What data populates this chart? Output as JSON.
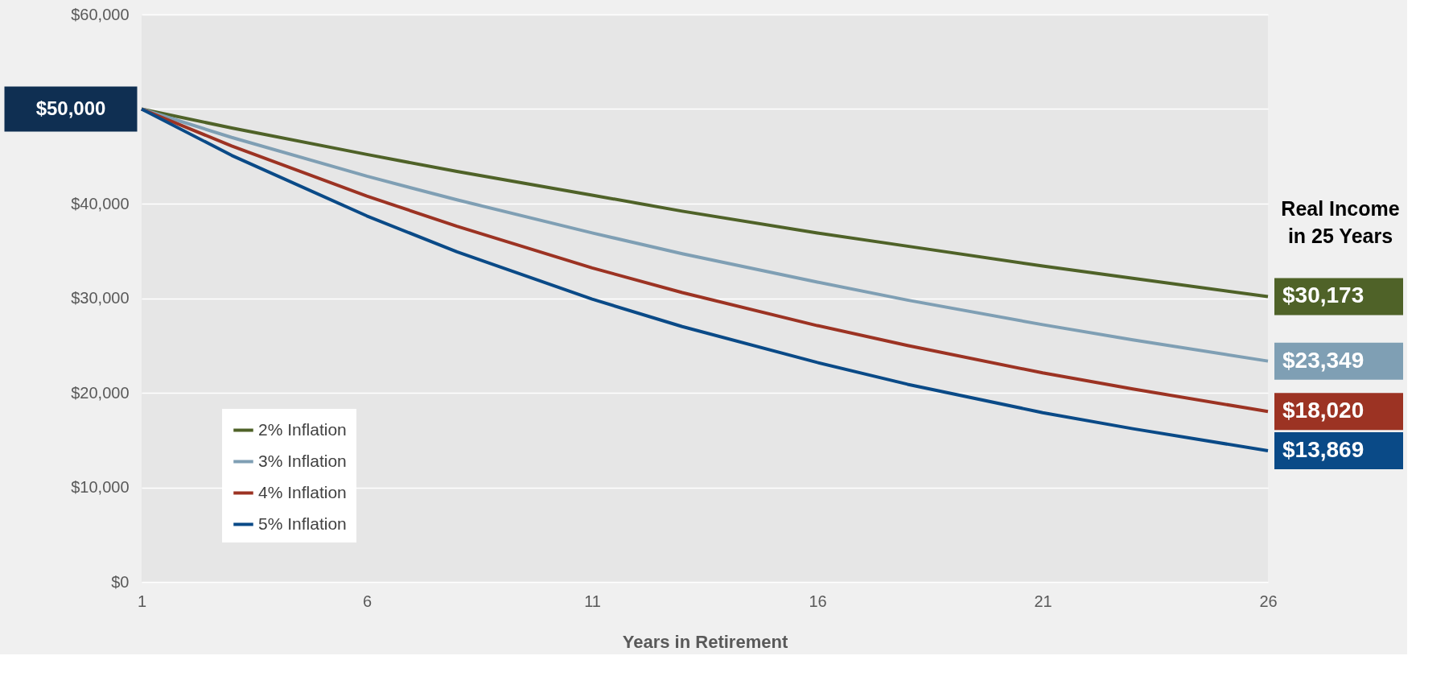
{
  "chart_data": {
    "type": "line",
    "xlabel": "Years in Retirement",
    "x": [
      1,
      3,
      6,
      8,
      11,
      13,
      16,
      18,
      21,
      23,
      26
    ],
    "series": [
      {
        "name": "2% Inflation",
        "color": "#4f6228",
        "values": [
          50000,
          48000,
          45200,
          43400,
          40900,
          39200,
          36900,
          35500,
          33400,
          32100,
          30173
        ],
        "value_labels": [
          null,
          null,
          null,
          null,
          null,
          null,
          null,
          null,
          null,
          null,
          "$30,173"
        ]
      },
      {
        "name": "3% Inflation",
        "color": "#7f9fb4",
        "values": [
          50000,
          47000,
          42900,
          40400,
          36900,
          34700,
          31700,
          29800,
          27200,
          25600,
          23349
        ],
        "value_labels": [
          null,
          null,
          null,
          null,
          null,
          null,
          null,
          null,
          null,
          null,
          "$23,349"
        ]
      },
      {
        "name": "4% Inflation",
        "color": "#9c3323",
        "values": [
          50000,
          46100,
          40800,
          37600,
          33200,
          30600,
          27100,
          25000,
          22100,
          20400,
          18020
        ],
        "value_labels": [
          null,
          null,
          null,
          null,
          null,
          null,
          null,
          null,
          null,
          null,
          "$18,020"
        ]
      },
      {
        "name": "5% Inflation",
        "color": "#0a4a87",
        "values": [
          50000,
          45100,
          38700,
          34900,
          29900,
          27000,
          23200,
          20900,
          17900,
          16200,
          13869
        ],
        "value_labels": [
          null,
          null,
          null,
          null,
          null,
          null,
          null,
          null,
          null,
          null,
          "$13,869"
        ]
      }
    ],
    "xlim": [
      1,
      26
    ],
    "xticks": [
      1,
      6,
      11,
      16,
      21,
      26
    ],
    "ylim": [
      0,
      60000
    ],
    "yticks": [
      {
        "value": 0,
        "label": "$0"
      },
      {
        "value": 10000,
        "label": "$10,000"
      },
      {
        "value": 20000,
        "label": "$20,000"
      },
      {
        "value": 30000,
        "label": "$30,000"
      },
      {
        "value": 40000,
        "label": "$40,000"
      },
      {
        "value": 50000,
        "label": null
      },
      {
        "value": 60000,
        "label": "$60,000"
      }
    ],
    "grid": "y",
    "legend": "bottom left",
    "marker": "none",
    "line_style": "solid",
    "annotations": [
      {
        "text": "$50,000",
        "x": 1,
        "y": 50000
      },
      "Real Income\nin 25 Years"
    ]
  }
}
